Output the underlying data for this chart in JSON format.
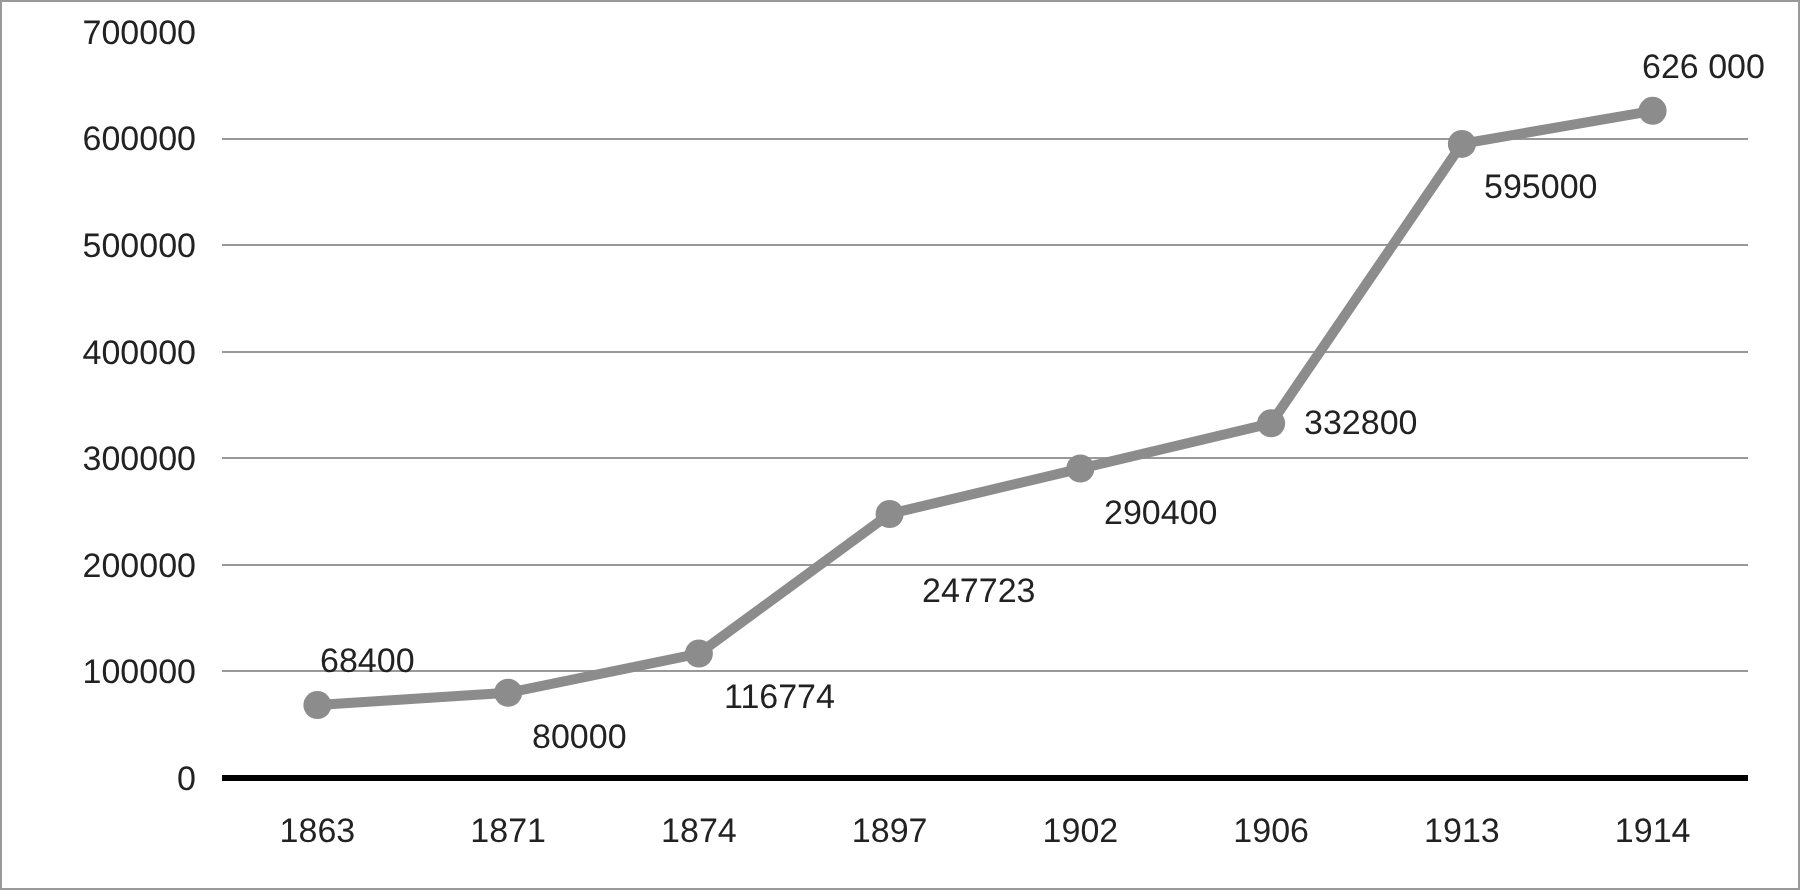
{
  "chart_data": {
    "type": "line",
    "categories": [
      "1863",
      "1871",
      "1874",
      "1897",
      "1902",
      "1906",
      "1913",
      "1914"
    ],
    "values": [
      68400,
      80000,
      116774,
      247723,
      290400,
      332800,
      595000,
      626000
    ],
    "value_labels": [
      "68400",
      "80000",
      "116774",
      "247723",
      "290400",
      "332800",
      "595000",
      "626 000"
    ],
    "color": "#8c8c8c",
    "marker": "circle",
    "line_style": "solid",
    "ylim": [
      0,
      700000
    ],
    "yticks": [
      0,
      100000,
      200000,
      300000,
      400000,
      500000,
      600000,
      700000
    ],
    "grid": "y"
  }
}
